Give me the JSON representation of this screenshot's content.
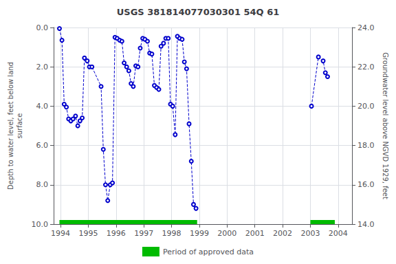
{
  "chart_data": {
    "type": "line",
    "title": "USGS 381814077030301 54Q 61",
    "ylabel": "Depth to water level, feet below land\nsurface",
    "y2label": "Groundwater level above NGVD 1929, feet",
    "xlim": [
      1993.75,
      2004.5
    ],
    "xticks": [
      1994,
      1995,
      1996,
      1997,
      1998,
      1999,
      2000,
      2001,
      2002,
      2003,
      2004
    ],
    "ylim": [
      10.0,
      0.0
    ],
    "yticks": [
      {
        "value": 0.0,
        "label": "0.0"
      },
      {
        "value": 2.0,
        "label": "2.0"
      },
      {
        "value": 4.0,
        "label": "4.0"
      },
      {
        "value": 6.0,
        "label": "6.0"
      },
      {
        "value": 8.0,
        "label": "8.0"
      },
      {
        "value": 10.0,
        "label": "10.0"
      }
    ],
    "y2lim": [
      14.0,
      24.0
    ],
    "y2ticks": [
      {
        "value": 14.0,
        "label": "14.0"
      },
      {
        "value": 16.0,
        "label": "16.0"
      },
      {
        "value": 18.0,
        "label": "18.0"
      },
      {
        "value": 20.0,
        "label": "20.0"
      },
      {
        "value": 22.0,
        "label": "22.0"
      },
      {
        "value": 24.0,
        "label": "24.0"
      }
    ],
    "grid": true,
    "legend": "bottom",
    "series": [
      {
        "color": "#0000cc",
        "line_style": "dashed",
        "marker": "circle",
        "x": [
          1993.96,
          1994.05,
          1994.13,
          1994.21,
          1994.29,
          1994.37,
          1994.45,
          1994.54,
          1994.62,
          1994.7,
          1994.78,
          1994.86,
          1994.96,
          1995.04,
          1995.13,
          1995.46,
          1995.54,
          1995.62,
          1995.7,
          1995.79,
          1995.87,
          1995.96,
          1996.04,
          1996.13,
          1996.21,
          1996.29,
          1996.38,
          1996.46,
          1996.54,
          1996.62,
          1996.71,
          1996.79,
          1996.87,
          1996.96,
          1997.04,
          1997.13,
          1997.21,
          1997.29,
          1997.38,
          1997.46,
          1997.54,
          1997.62,
          1997.71,
          1997.79,
          1997.88,
          1997.96,
          1998.04,
          1998.13,
          1998.21,
          1998.29,
          1998.38,
          1998.46,
          1998.54,
          1998.63,
          1998.71,
          1998.79,
          1998.88
        ],
        "values": [
          0.05,
          0.65,
          3.9,
          4.05,
          4.65,
          4.75,
          4.65,
          4.5,
          5.0,
          4.75,
          4.6,
          1.55,
          1.7,
          2.0,
          2.0,
          3.0,
          6.2,
          8.0,
          8.8,
          8.0,
          7.9,
          0.5,
          0.55,
          0.65,
          0.7,
          1.8,
          2.0,
          2.2,
          2.85,
          3.0,
          1.95,
          2.0,
          1.05,
          0.55,
          0.6,
          0.7,
          1.3,
          1.35,
          2.95,
          3.05,
          3.15,
          0.95,
          0.8,
          0.55,
          0.55,
          3.9,
          4.0,
          5.45,
          0.45,
          0.55,
          0.6,
          1.75,
          2.1,
          4.9,
          6.8,
          9.0,
          9.2
        ]
      },
      {
        "color": "#0000cc",
        "line_style": "dashed",
        "marker": "circle",
        "x": [
          2003.04,
          2003.29,
          2003.46,
          2003.54,
          2003.62
        ],
        "values": [
          4.0,
          1.5,
          1.7,
          2.3,
          2.5
        ]
      }
    ],
    "approved_periods": {
      "name": "Period of approved data",
      "color": "#00bb00",
      "periods": [
        [
          1993.96,
          1998.92
        ],
        [
          2003.0,
          2003.88
        ]
      ]
    }
  }
}
